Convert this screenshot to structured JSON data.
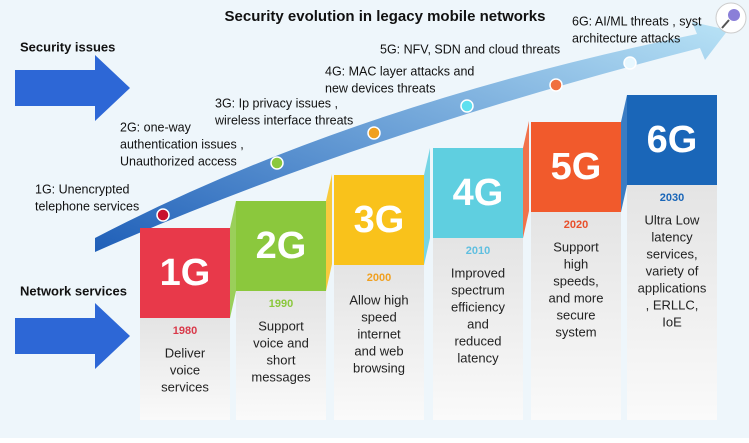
{
  "title": "Security evolution in legacy mobile networks",
  "left_labels": {
    "security": "Security issues",
    "network": "Network services"
  },
  "generations": [
    {
      "label": "1G",
      "year": "1980",
      "services": [
        "Deliver",
        "voice",
        "services"
      ],
      "threats": [
        "1G: Unencrypted",
        "telephone services"
      ]
    },
    {
      "label": "2G",
      "year": "1990",
      "services": [
        "Support",
        "voice and",
        "short",
        "messages"
      ],
      "threats": [
        "2G: one-way",
        "authentication issues ,",
        "Unauthorized access"
      ]
    },
    {
      "label": "3G",
      "year": "2000",
      "services": [
        "Allow high",
        "speed",
        "internet",
        "and web",
        "browsing"
      ],
      "threats": [
        "3G: Ip privacy issues ,",
        "wireless interface threats"
      ]
    },
    {
      "label": "4G",
      "year": "2010",
      "services": [
        "Improved",
        "spectrum",
        "efficiency",
        "and",
        "reduced",
        "latency"
      ],
      "threats": [
        "4G: MAC layer attacks and",
        "new devices threats"
      ]
    },
    {
      "label": "5G",
      "year": "2020",
      "services": [
        "Support",
        "high",
        "speeds,",
        "and more",
        "secure",
        "system"
      ],
      "threats": [
        "5G: NFV, SDN and cloud threats"
      ]
    },
    {
      "label": "6G",
      "year": "2030",
      "services": [
        "Ultra Low",
        "latency",
        "services,",
        "variety of",
        "applications",
        ", ERLLC,",
        "IoE"
      ],
      "threats": [
        "6G: AI/ML threats , syst",
        "architecture attacks"
      ]
    }
  ]
}
